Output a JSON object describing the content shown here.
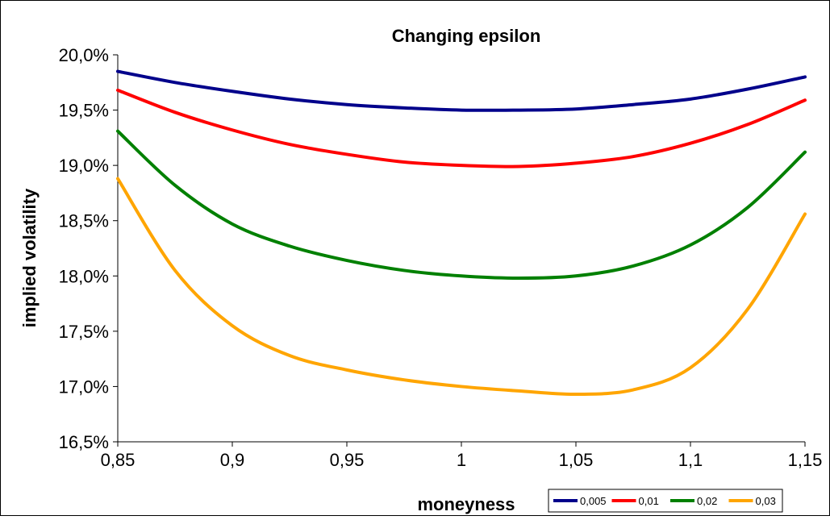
{
  "chart_data": {
    "type": "line",
    "title": "Changing epsilon",
    "xlabel": "moneyness",
    "ylabel": "implied volatility",
    "xlim": [
      0.85,
      1.15
    ],
    "ylim": [
      16.5,
      20.0
    ],
    "x_ticks": [
      0.85,
      0.9,
      0.95,
      1.0,
      1.05,
      1.1,
      1.15
    ],
    "x_tick_labels": [
      "0,85",
      "0,9",
      "0,95",
      "1",
      "1,05",
      "1,1",
      "1,15"
    ],
    "y_ticks": [
      16.5,
      17.0,
      17.5,
      18.0,
      18.5,
      19.0,
      19.5,
      20.0
    ],
    "y_tick_labels": [
      "16,5%",
      "17,0%",
      "17,5%",
      "18,0%",
      "18,5%",
      "19,0%",
      "19,5%",
      "20,0%"
    ],
    "grid": false,
    "legend_position": "bottom-right",
    "x": [
      0.85,
      0.875,
      0.9,
      0.925,
      0.95,
      0.975,
      1.0,
      1.025,
      1.05,
      1.075,
      1.1,
      1.125,
      1.15
    ],
    "series": [
      {
        "name": "0,005",
        "color": "#00008b",
        "values": [
          19.85,
          19.75,
          19.67,
          19.6,
          19.55,
          19.52,
          19.5,
          19.5,
          19.51,
          19.55,
          19.6,
          19.69,
          19.8
        ]
      },
      {
        "name": "0,01",
        "color": "#ff0000",
        "values": [
          19.68,
          19.48,
          19.32,
          19.19,
          19.1,
          19.03,
          19.0,
          18.99,
          19.02,
          19.08,
          19.2,
          19.37,
          19.59
        ]
      },
      {
        "name": "0,02",
        "color": "#008000",
        "values": [
          19.31,
          18.82,
          18.47,
          18.27,
          18.14,
          18.05,
          18.0,
          17.98,
          18.0,
          18.09,
          18.28,
          18.62,
          19.12
        ]
      },
      {
        "name": "0,03",
        "color": "#ffa500",
        "values": [
          18.88,
          18.05,
          17.55,
          17.28,
          17.15,
          17.06,
          17.0,
          16.96,
          16.93,
          16.97,
          17.17,
          17.7,
          18.56
        ]
      }
    ]
  }
}
